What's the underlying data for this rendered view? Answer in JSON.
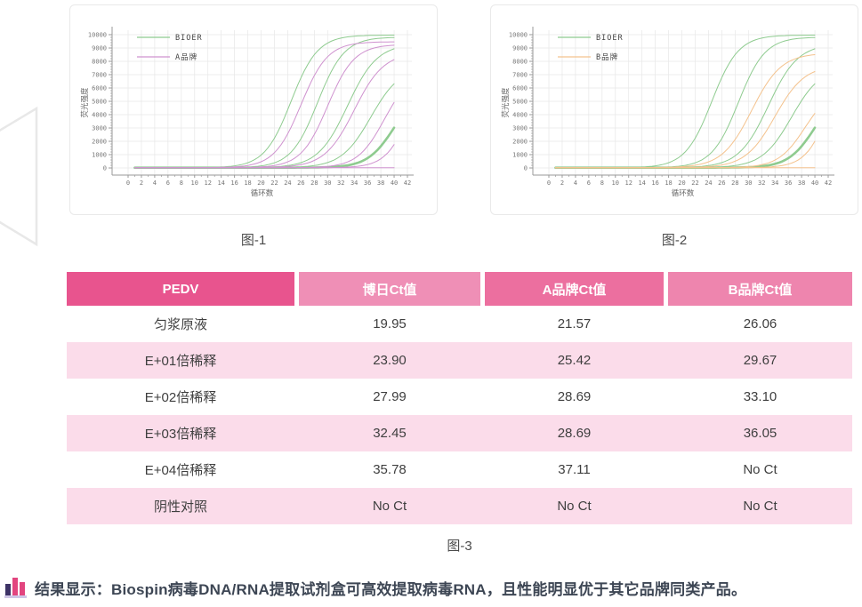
{
  "figures": {
    "fig1_caption": "图-1",
    "fig2_caption": "图-2",
    "fig3_caption": "图-3"
  },
  "carousel": {
    "prev_arrow_color": "#e8e8e8"
  },
  "chart_data": [
    {
      "type": "line",
      "id": "chart-1",
      "caption": "图-1",
      "xlabel": "循环数",
      "ylabel": "荧光强度",
      "x_range": [
        0,
        42
      ],
      "x_tick_step": 2,
      "y_range": [
        0,
        10000
      ],
      "y_tick_step": 1000,
      "grid": true,
      "legend_position": "top-left",
      "legend": [
        {
          "label": "BIOER",
          "color": "#8ecb8f"
        },
        {
          "label": "A品牌",
          "color": "#cf92cf"
        }
      ],
      "series": [
        {
          "name": "BIOER",
          "color": "#8ecb8f",
          "curves": [
            {
              "midpoint": 24.5,
              "k": 0.5,
              "plateau": 9950,
              "width": 1
            },
            {
              "midpoint": 28.5,
              "k": 0.5,
              "plateau": 9800,
              "width": 1
            },
            {
              "midpoint": 33.0,
              "k": 0.45,
              "plateau": 9300,
              "width": 1
            },
            {
              "midpoint": 36.5,
              "k": 0.45,
              "plateau": 7600,
              "width": 1
            },
            {
              "midpoint": 40.0,
              "k": 0.5,
              "plateau": 6000,
              "width": 2.6
            }
          ]
        },
        {
          "name": "A品牌",
          "color": "#cf92cf",
          "curves": [
            {
              "midpoint": 26.0,
              "k": 0.5,
              "plateau": 9450,
              "width": 1
            },
            {
              "midpoint": 30.0,
              "k": 0.5,
              "plateau": 9250,
              "width": 1
            },
            {
              "midpoint": 34.0,
              "k": 0.45,
              "plateau": 8650,
              "width": 1
            },
            {
              "midpoint": 38.5,
              "k": 0.5,
              "plateau": 7200,
              "width": 1
            },
            {
              "midpoint": 42.5,
              "k": 0.55,
              "plateau": 8600,
              "width": 1
            },
            {
              "flat": true,
              "value": 15,
              "width": 1
            }
          ]
        }
      ]
    },
    {
      "type": "line",
      "id": "chart-2",
      "caption": "图-2",
      "xlabel": "循环数",
      "ylabel": "荧光强度",
      "x_range": [
        0,
        42
      ],
      "x_tick_step": 2,
      "y_range": [
        0,
        10000
      ],
      "y_tick_step": 1000,
      "grid": true,
      "legend_position": "top-left",
      "legend": [
        {
          "label": "BIOER",
          "color": "#8ecb8f"
        },
        {
          "label": "B品牌",
          "color": "#f4c28d"
        }
      ],
      "series": [
        {
          "name": "BIOER",
          "color": "#8ecb8f",
          "curves": [
            {
              "midpoint": 24.5,
              "k": 0.5,
              "plateau": 9950,
              "width": 1
            },
            {
              "midpoint": 28.5,
              "k": 0.5,
              "plateau": 9800,
              "width": 1
            },
            {
              "midpoint": 33.0,
              "k": 0.45,
              "plateau": 9300,
              "width": 1
            },
            {
              "midpoint": 36.5,
              "k": 0.45,
              "plateau": 7600,
              "width": 1
            },
            {
              "midpoint": 40.0,
              "k": 0.5,
              "plateau": 6000,
              "width": 2.6
            }
          ]
        },
        {
          "name": "B品牌",
          "color": "#f4c28d",
          "curves": [
            {
              "midpoint": 30.5,
              "k": 0.45,
              "plateau": 8600,
              "width": 1
            },
            {
              "midpoint": 34.0,
              "k": 0.45,
              "plateau": 7700,
              "width": 1
            },
            {
              "midpoint": 38.5,
              "k": 0.5,
              "plateau": 6000,
              "width": 1
            },
            {
              "midpoint": 42.5,
              "k": 0.55,
              "plateau": 9800,
              "width": 1
            },
            {
              "flat": true,
              "value": 15,
              "width": 1
            }
          ]
        }
      ]
    }
  ],
  "table": {
    "headers": [
      {
        "label": "PEDV",
        "bg": "#e8548e"
      },
      {
        "label": "博日Ct值",
        "bg": "#ef8fb6"
      },
      {
        "label": "A品牌Ct值",
        "bg": "#ec6f9f"
      },
      {
        "label": "B品牌Ct值",
        "bg": "#ee85ae"
      }
    ],
    "rows": [
      [
        "匀浆原液",
        "19.95",
        "21.57",
        "26.06"
      ],
      [
        "E+01倍稀释",
        "23.90",
        "25.42",
        "29.67"
      ],
      [
        "E+02倍稀释",
        "27.99",
        "28.69",
        "33.10"
      ],
      [
        "E+03倍稀释",
        "32.45",
        "28.69",
        "36.05"
      ],
      [
        "E+04倍稀释",
        "35.78",
        "37.11",
        "No Ct"
      ],
      [
        "阴性对照",
        "No Ct",
        "No Ct",
        "No Ct"
      ]
    ],
    "alt_row_bg": "#fbdcea",
    "white_row_bg": "#ffffff"
  },
  "conclusion": {
    "text": "结果显示：Biospin病毒DNA/RNA提取试剂盒可高效提取病毒RNA，且性能明显优于其它品牌同类产品。",
    "icon_colors": {
      "bar1": "#3d3366",
      "bar2": "#e2457f",
      "bar3": "#e2457f",
      "base": "#cfc6e6"
    }
  }
}
